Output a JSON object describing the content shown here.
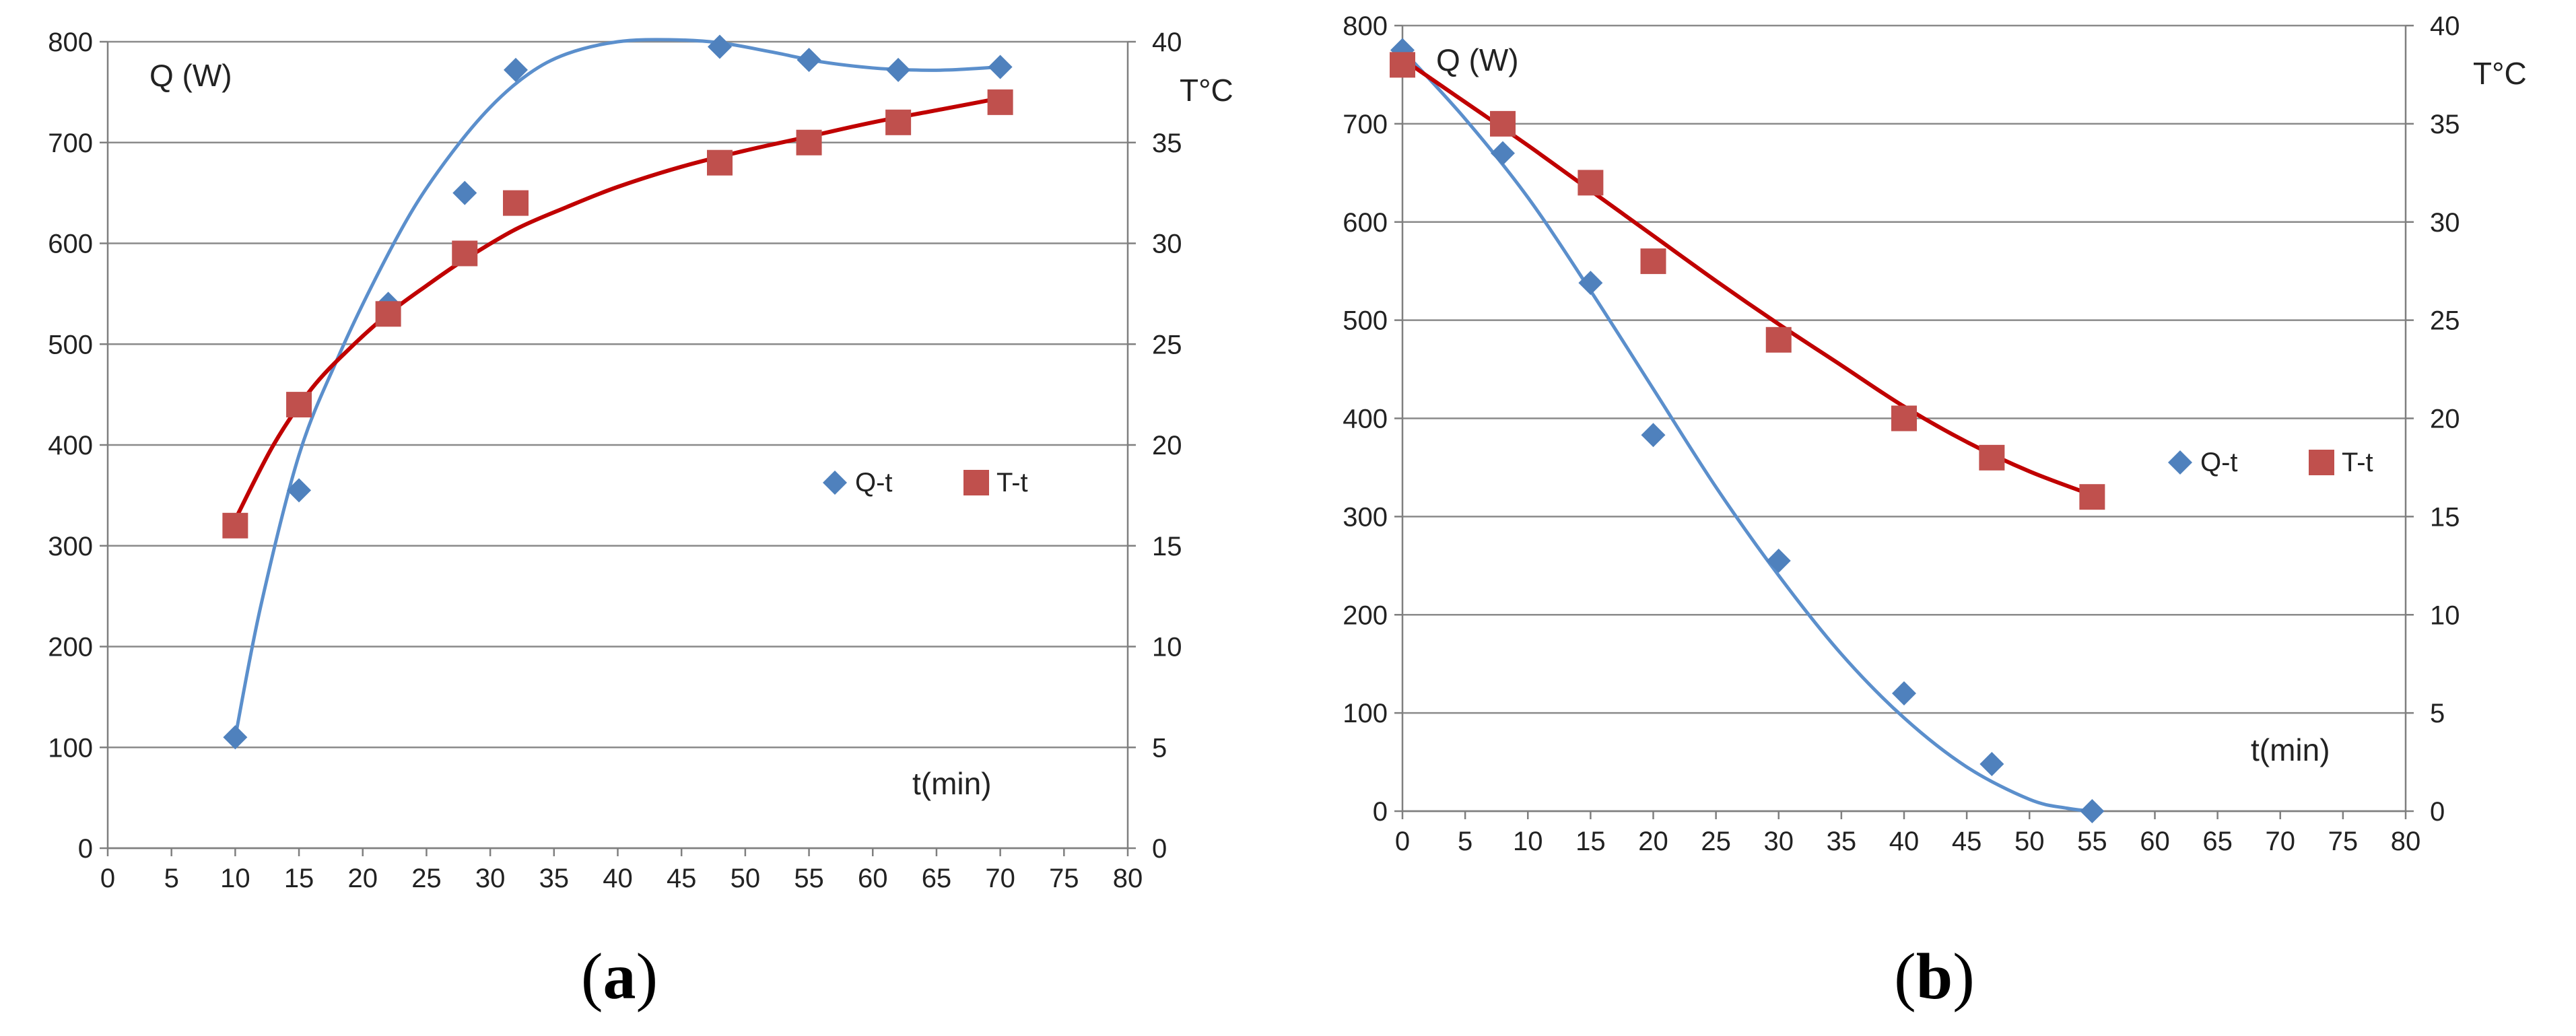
{
  "colors": {
    "q_series": "#4F81BD",
    "t_series": "#C0504D",
    "q_line": "#5B8FCC",
    "t_line": "#C00000",
    "grid": "#8A8A8A",
    "axis": "#7F7F7F"
  },
  "chart_data": [
    {
      "id": "a",
      "type": "line",
      "caption_paren_open": "(",
      "caption_letter": "a",
      "caption_paren_close": ")",
      "xlabel": "t(min)",
      "ylabel_left": "Q (W)",
      "ylabel_right": "T°C",
      "xlim": [
        0,
        80
      ],
      "ylim_left": [
        0,
        800
      ],
      "ylim_right": [
        0,
        40
      ],
      "x_ticks": [
        "0",
        "5",
        "10",
        "15",
        "20",
        "25",
        "30",
        "35",
        "40",
        "45",
        "50",
        "55",
        "60",
        "65",
        "70",
        "75",
        "80"
      ],
      "y_left_ticks": [
        "0",
        "100",
        "200",
        "300",
        "400",
        "500",
        "600",
        "700",
        "800"
      ],
      "y_right_ticks": [
        "0",
        "5",
        "10",
        "15",
        "20",
        "25",
        "30",
        "35",
        "40"
      ],
      "series": [
        {
          "name": "Q-t",
          "axis": "left",
          "marker": "diamond",
          "x": [
            10,
            15,
            22,
            28,
            32,
            48,
            55,
            62,
            70
          ],
          "y": [
            110,
            355,
            540,
            650,
            772,
            795,
            782,
            772,
            775
          ],
          "trend_x": [
            10,
            12,
            15,
            18,
            21,
            24,
            27,
            30,
            33,
            36,
            40,
            44,
            48,
            52,
            56,
            60,
            63,
            66,
            70
          ],
          "trend_y": [
            110,
            240,
            390,
            485,
            565,
            635,
            690,
            735,
            768,
            788,
            800,
            802,
            799,
            790,
            780,
            774,
            772,
            772,
            775
          ]
        },
        {
          "name": "T-t",
          "axis": "right",
          "marker": "square",
          "x": [
            10,
            15,
            22,
            28,
            32,
            48,
            55,
            62,
            70
          ],
          "y": [
            16,
            22,
            26.5,
            29.5,
            32,
            34,
            35,
            36,
            37
          ],
          "trend_x": [
            10,
            13,
            16,
            19,
            22,
            25,
            28,
            32,
            36,
            40,
            45,
            50,
            55,
            60,
            65,
            70
          ],
          "trend_y": [
            16.3,
            20,
            22.8,
            24.8,
            26.5,
            27.9,
            29.2,
            30.7,
            31.8,
            32.8,
            33.8,
            34.6,
            35.3,
            36,
            36.6,
            37.2
          ]
        }
      ]
    },
    {
      "id": "b",
      "type": "line",
      "caption_paren_open": "(",
      "caption_letter": "b",
      "caption_paren_close": ")",
      "xlabel": "t(min)",
      "ylabel_left": "Q (W)",
      "ylabel_right": "T°C",
      "xlim": [
        0,
        80
      ],
      "ylim_left": [
        0,
        800
      ],
      "ylim_right": [
        0,
        40
      ],
      "x_ticks": [
        "0",
        "5",
        "10",
        "15",
        "20",
        "25",
        "30",
        "35",
        "40",
        "45",
        "50",
        "55",
        "60",
        "65",
        "70",
        "75",
        "80"
      ],
      "y_left_ticks": [
        "0",
        "100",
        "200",
        "300",
        "400",
        "500",
        "600",
        "700",
        "800"
      ],
      "y_right_ticks": [
        "0",
        "5",
        "10",
        "15",
        "20",
        "25",
        "30",
        "35",
        "40"
      ],
      "series": [
        {
          "name": "Q-t",
          "axis": "left",
          "marker": "diamond",
          "x": [
            0,
            8,
            15,
            20,
            30,
            40,
            47,
            55
          ],
          "y": [
            775,
            670,
            538,
            383,
            255,
            120,
            48,
            0
          ],
          "trend_x": [
            0,
            5,
            10,
            15,
            20,
            25,
            30,
            35,
            40,
            45,
            50,
            53,
            55
          ],
          "trend_y": [
            775,
            705,
            625,
            530,
            430,
            330,
            240,
            160,
            95,
            45,
            12,
            3,
            0
          ]
        },
        {
          "name": "T-t",
          "axis": "right",
          "marker": "square",
          "x": [
            0,
            8,
            15,
            20,
            30,
            40,
            47,
            55
          ],
          "y": [
            38,
            35,
            32,
            28,
            24,
            20,
            18,
            16
          ],
          "trend_x": [
            0,
            5,
            10,
            15,
            20,
            25,
            30,
            35,
            40,
            45,
            50,
            55
          ],
          "trend_y": [
            38.3,
            36.1,
            33.9,
            31.6,
            29.3,
            27,
            24.8,
            22.7,
            20.6,
            18.8,
            17.3,
            16.1
          ]
        }
      ]
    }
  ]
}
